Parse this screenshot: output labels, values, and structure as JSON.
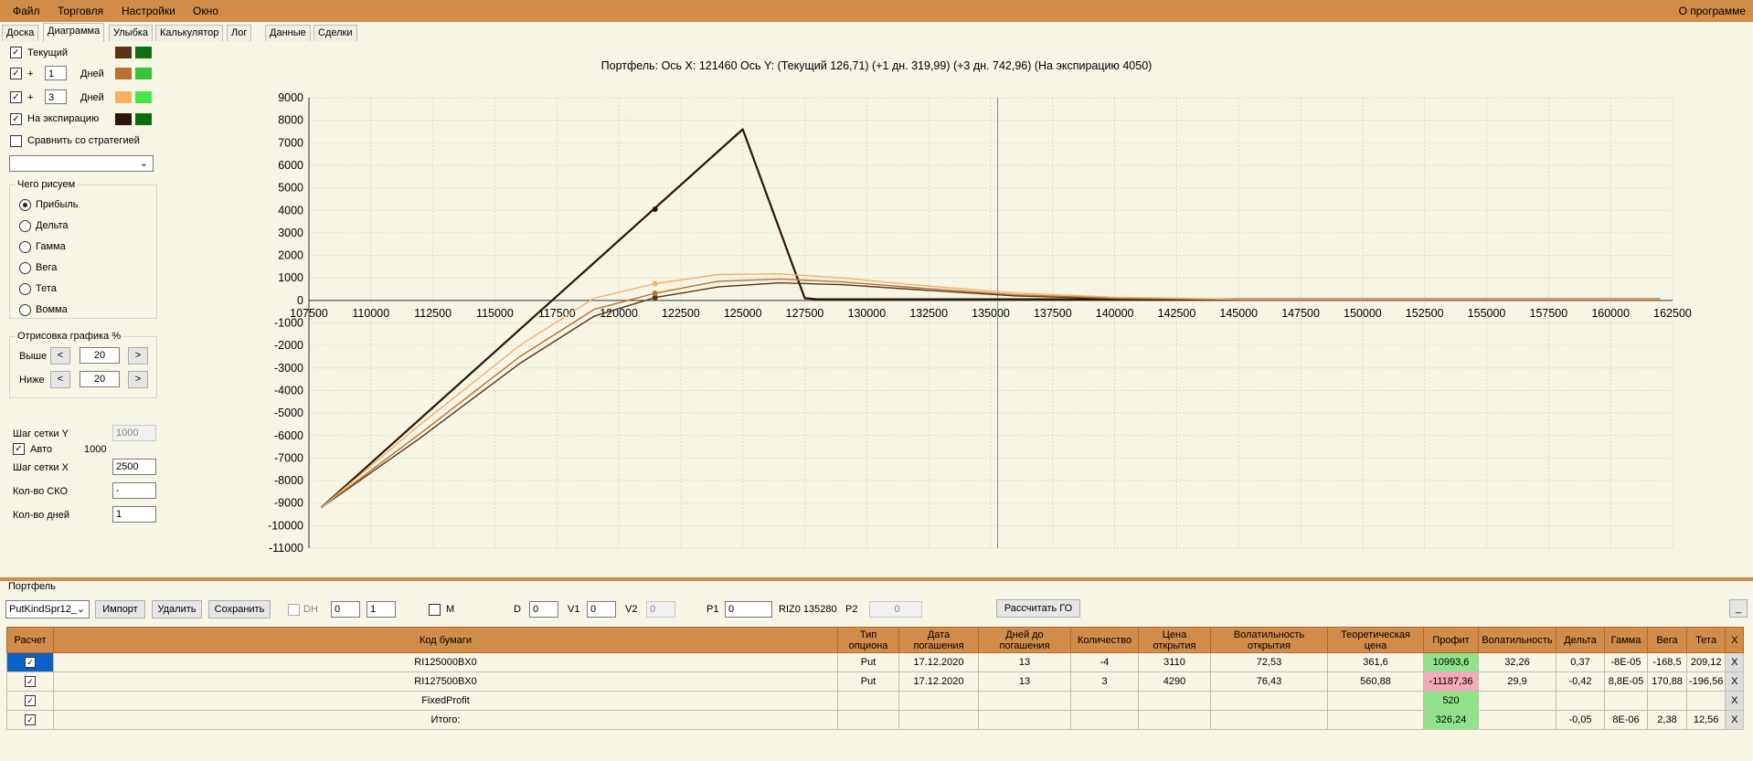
{
  "menu": {
    "items": [
      "Файл",
      "Торговля",
      "Настройки",
      "Окно"
    ],
    "about": "О программе"
  },
  "tabs": [
    "Доска",
    "Диаграмма",
    "Улыбка",
    "Калькулятор",
    "Лог",
    "Данные",
    "Сделки"
  ],
  "left": {
    "current_label": "Текущий",
    "plus": "+",
    "days_label": "Дней",
    "days1": "1",
    "days2": "3",
    "expiry_label": "На экспирацию",
    "compare_label": "Сравнить со стратегией",
    "colors": {
      "c1": "#5a3215",
      "g1": "#0f6f15",
      "c2": "#b9722e",
      "g2": "#3ac43a",
      "c3": "#f5b061",
      "g3": "#44e844",
      "c4": "#2b1608",
      "g4": "#0b6d12"
    },
    "draw_group": "Чего рисуем",
    "radios": [
      "Прибыль",
      "Дельта",
      "Гамма",
      "Вега",
      "Тета",
      "Вомма"
    ],
    "plot_group": "Отрисовка графика %",
    "above_label": "Выше",
    "below_label": "Ниже",
    "above_val": "20",
    "below_val": "20",
    "lt": "<",
    "gt": ">",
    "grid_y_label": "Шаг сетки Y",
    "grid_y_val": "1000",
    "auto_label": "Авто",
    "auto_val": "1000",
    "grid_x_label": "Шаг сетки X",
    "grid_x_val": "2500",
    "sko_label": "Кол-во СКО",
    "sko_val": "-",
    "ndays_label": "Кол-во дней",
    "ndays_val": "1"
  },
  "chart_title": "Портфель: Ось X: 121460 Ось Y:  (Текущий 126,71)  (+1 дн. 319,99)  (+3 дн. 742,96)  (На экспирацию 4050)",
  "chart_data": {
    "type": "line",
    "xlim": [
      107500,
      162500
    ],
    "ylim": [
      -11000,
      9000
    ],
    "x_ticks": [
      107500,
      110000,
      112500,
      115000,
      117500,
      120000,
      122500,
      125000,
      127500,
      130000,
      132500,
      135000,
      137500,
      140000,
      142500,
      145000,
      147500,
      150000,
      152500,
      155000,
      157500,
      160000,
      162500
    ],
    "y_ticks": [
      9000,
      8000,
      7000,
      6000,
      5000,
      4000,
      3000,
      2000,
      1000,
      0,
      -1000,
      -2000,
      -3000,
      -4000,
      -5000,
      -6000,
      -7000,
      -8000,
      -9000,
      -10000,
      -11000
    ],
    "vertical_line_x": 135280,
    "series": [
      {
        "color": "#2b1608",
        "x": [
          108000,
          125000,
          127500,
          128000,
          162000
        ],
        "y": [
          -9200,
          7600,
          100,
          50,
          50
        ]
      },
      {
        "color": "#5a3215",
        "x": [
          108000,
          112000,
          116000,
          119000,
          121460,
          124000,
          126500,
          129000,
          132000,
          136000,
          140000,
          145000,
          162000
        ],
        "y": [
          -9200,
          -6100,
          -2800,
          -700,
          127,
          600,
          780,
          700,
          480,
          200,
          80,
          30,
          30
        ]
      },
      {
        "color": "#b9722e",
        "x": [
          108000,
          112000,
          116000,
          119000,
          121460,
          124000,
          126500,
          129000,
          132000,
          136000,
          140000,
          145000,
          162000
        ],
        "y": [
          -9200,
          -5900,
          -2500,
          -400,
          320,
          850,
          950,
          820,
          560,
          250,
          100,
          40,
          40
        ]
      },
      {
        "color": "#f5b061",
        "x": [
          108000,
          112000,
          116000,
          119000,
          121460,
          124000,
          126500,
          129000,
          132000,
          136000,
          140000,
          145000,
          162000
        ],
        "y": [
          -9200,
          -5500,
          -2000,
          100,
          743,
          1150,
          1180,
          1000,
          680,
          330,
          140,
          50,
          50
        ]
      }
    ],
    "markers": [
      {
        "x": 121460,
        "y": 4050,
        "color": "#2b1608"
      },
      {
        "x": 121460,
        "y": 127,
        "color": "#5a3215"
      },
      {
        "x": 121460,
        "y": 320,
        "color": "#b9722e"
      },
      {
        "x": 121460,
        "y": 743,
        "color": "#f5b061"
      }
    ]
  },
  "portfolio": {
    "title": "Портфель",
    "select": "PutKindSpr12_",
    "btn_import": "Импорт",
    "btn_delete": "Удалить",
    "btn_save": "Сохранить",
    "dh": "DH",
    "spin1": "0",
    "spin2": "1",
    "m": "M",
    "d_label": "D",
    "d_val": "0",
    "v1_label": "V1",
    "v1_val": "0",
    "v2_label": "V2",
    "v2_val": "0",
    "p1_label": "P1",
    "p1_val": "0",
    "riz": "RIZ0 135280",
    "p2_label": "P2",
    "p2_val": "0",
    "btn_go": "Рассчитать ГО",
    "btn_min": "_"
  },
  "table": {
    "headers": [
      "Расчет",
      "Код бумаги",
      "Тип\nопциона",
      "Дата\nпогашения",
      "Дней до\nпогашения",
      "Количество",
      "Цена\nоткрытия",
      "Волатильность\nоткрытия",
      "Теоретическая\nцена",
      "Профит",
      "Волатильность",
      "Дельта",
      "Гамма",
      "Вега",
      "Тета",
      "X"
    ],
    "rows": [
      [
        "RI125000BX0",
        "Put",
        "17.12.2020",
        "13",
        "-4",
        "3110",
        "72,53",
        "361,6",
        "10993,6",
        "32,26",
        "0,37",
        "-8E-05",
        "-168,5",
        "209,12",
        "X"
      ],
      [
        "RI127500BX0",
        "Put",
        "17.12.2020",
        "13",
        "3",
        "4290",
        "76,43",
        "560,88",
        "-11187,36",
        "29,9",
        "-0,42",
        "8,8E-05",
        "170,88",
        "-196,56",
        "X"
      ],
      [
        "FixedProfit",
        "",
        "",
        "",
        "",
        "",
        "",
        "",
        "520",
        "",
        "",
        "",
        "",
        "",
        "X"
      ],
      [
        "Итого:",
        "",
        "",
        "",
        "",
        "",
        "",
        "",
        "326,24",
        "",
        "-0,05",
        "8E-06",
        "2,38",
        "12,56",
        "X"
      ]
    ]
  }
}
